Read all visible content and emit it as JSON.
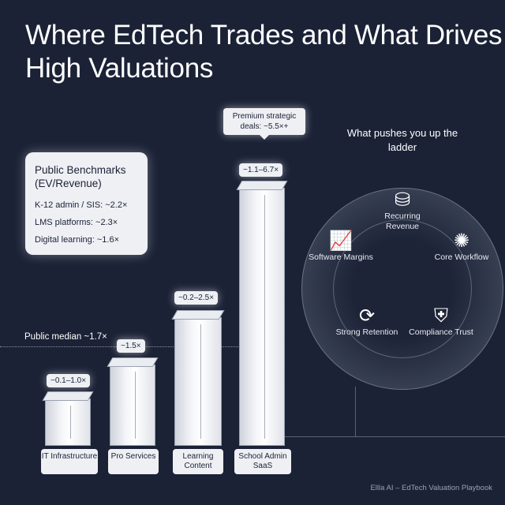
{
  "title": "Where EdTech Trades and What Drives High Valuations",
  "benchmarks": {
    "heading": "Public Benchmarks (EV/Revenue)",
    "items": [
      "K-12 admin / SIS: ~2.2×",
      "LMS platforms: ~2.3×",
      "Digital learning: ~1.6×"
    ]
  },
  "median_label": "Public median ~1.7×",
  "premium_label": "Premium strategic deals: ~5.5×+",
  "segments": [
    {
      "name": "IT Infrastructure",
      "range": "~0.1–1.0×"
    },
    {
      "name": "Pro Services",
      "range": "~1.5×"
    },
    {
      "name": "Learning Content",
      "range": "~0.2–2.5×"
    },
    {
      "name": "School Admin SaaS",
      "range": "~1.1–6.7×"
    }
  ],
  "ladder": {
    "title": "What pushes you up the ladder",
    "drivers": [
      {
        "label": "Recurring Revenue",
        "icon": "coins-arrow-icon"
      },
      {
        "label": "Core Workflow",
        "icon": "network-hub-icon"
      },
      {
        "label": "Compliance Trust",
        "icon": "shield-lock-icon"
      },
      {
        "label": "Strong Retention",
        "icon": "cycle-arrows-icon"
      },
      {
        "label": "Software Margins",
        "icon": "bar-growth-icon"
      }
    ]
  },
  "footer": "Ellla AI – EdTech Valuation Playbook"
}
